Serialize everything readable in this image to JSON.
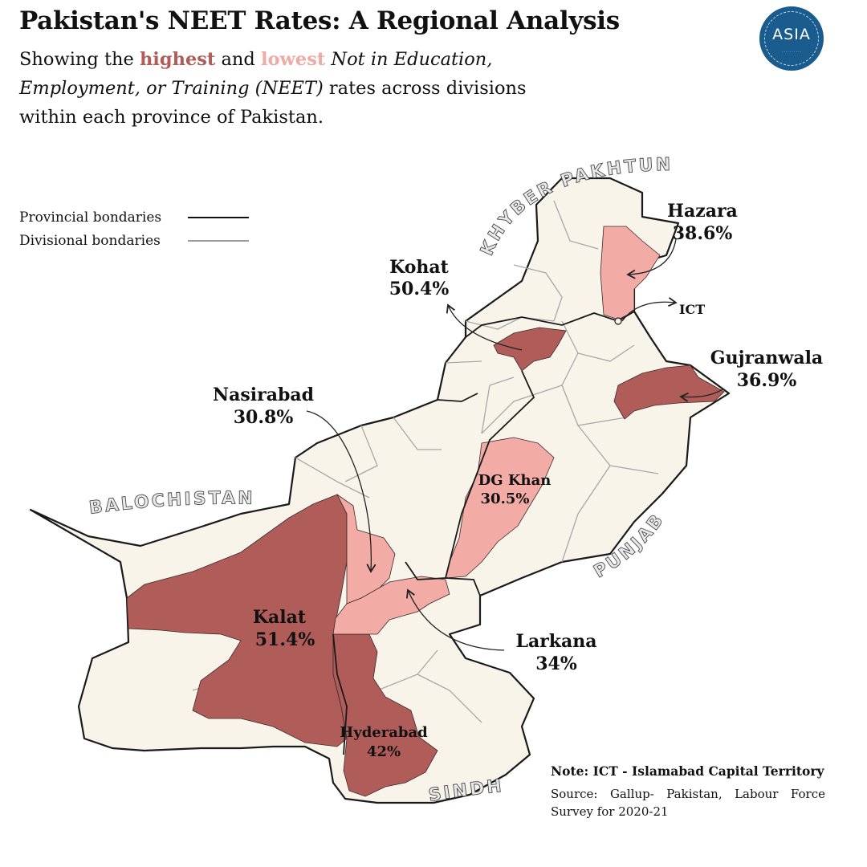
{
  "title": "Pakistan's NEET Rates: A Regional Analysis",
  "subtitle": {
    "prefix": "Showing the ",
    "highest": "highest",
    "and": " and ",
    "lowest": "lowest",
    "italic": " Not in Education, Employment, or Training (NEET)",
    "suffix": " rates across divisions within each province of Pakistan."
  },
  "logo": {
    "text": "ASIA",
    "icon": "asia-logo"
  },
  "legend": {
    "provincial": "Provincial bondaries",
    "divisional": "Divisional bondaries"
  },
  "provinces": {
    "kp": "KHYBER PAKHTUNKHWA",
    "balochistan": "BALOCHISTAN",
    "punjab": "PUNJAB",
    "sindh": "SINDH"
  },
  "divisions": {
    "hazara": {
      "name": "Hazara",
      "value": "38.6%",
      "level": "lowest"
    },
    "kohat": {
      "name": "Kohat",
      "value": "50.4%",
      "level": "highest"
    },
    "ict": {
      "name": "ICT"
    },
    "gujranwala": {
      "name": "Gujranwala",
      "value": "36.9%",
      "level": "highest"
    },
    "nasirabad": {
      "name": "Nasirabad",
      "value": "30.8%",
      "level": "lowest"
    },
    "dgkhan": {
      "name": "DG Khan",
      "value": "30.5%",
      "level": "lowest"
    },
    "kalat": {
      "name": "Kalat",
      "value": "51.4%",
      "level": "highest"
    },
    "larkana": {
      "name": "Larkana",
      "value": "34%",
      "level": "lowest"
    },
    "hyderabad": {
      "name": "Hyderabad",
      "value": "42%",
      "level": "highest"
    }
  },
  "colors": {
    "highest": "#b05c59",
    "lowest": "#f2aba5",
    "base": "#f8f4ea"
  },
  "note": "Note: ICT - Islamabad Capital Territory",
  "source": "Source: Gallup- Pakistan, Labour Force Survey for 2020-21"
}
